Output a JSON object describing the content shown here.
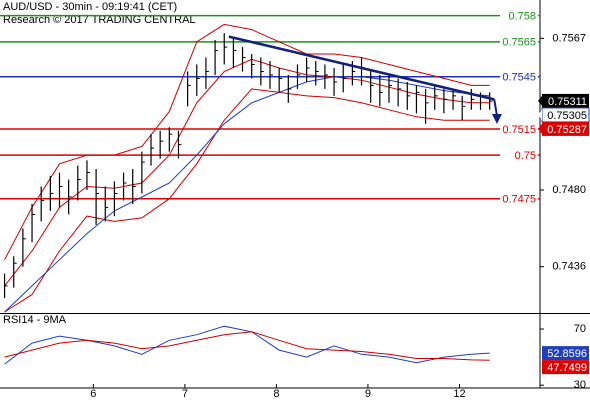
{
  "chart_data": {
    "type": "ohlc",
    "title": "AUD/USD - 30min - 09:19:41 (CET)",
    "subtitle": "Research © 2017 TRADING CENTRAL",
    "xlim": [
      -0.5,
      58.5
    ],
    "xticks": [
      {
        "value": 9.7,
        "label": "6"
      },
      {
        "value": 19.7,
        "label": "7"
      },
      {
        "value": 29.7,
        "label": "8"
      },
      {
        "value": 39.7,
        "label": "9"
      },
      {
        "value": 49.7,
        "label": "12"
      }
    ],
    "ylim": [
      0.741,
      0.7589
    ],
    "yticks": [
      0.7567,
      {
        "value": 0.748,
        "label": "0.7480"
      },
      0.7436
    ],
    "bar_color": "#000000",
    "high": [
      0.7432,
      0.7442,
      0.7458,
      0.7472,
      0.7482,
      0.7488,
      0.749,
      0.7486,
      0.7494,
      0.7497,
      0.7492,
      0.7482,
      0.7485,
      0.749,
      0.7492,
      0.7502,
      0.7512,
      0.7514,
      0.7516,
      0.7514,
      0.7548,
      0.7552,
      0.7556,
      0.7566,
      0.757,
      0.7568,
      0.7562,
      0.7558,
      0.7556,
      0.7554,
      0.755,
      0.7546,
      0.7552,
      0.7556,
      0.7554,
      0.7552,
      0.755,
      0.7552,
      0.7554,
      0.7556,
      0.7548,
      0.7546,
      0.7546,
      0.7544,
      0.7542,
      0.754,
      0.7538,
      0.754,
      0.7538,
      0.7538,
      0.7534,
      0.7538,
      0.7536,
      0.7536
    ],
    "low": [
      0.7418,
      0.7424,
      0.7436,
      0.745,
      0.7462,
      0.7468,
      0.747,
      0.7466,
      0.7474,
      0.748,
      0.746,
      0.7462,
      0.7465,
      0.7474,
      0.7472,
      0.7478,
      0.7494,
      0.7498,
      0.7502,
      0.7498,
      0.7528,
      0.7534,
      0.7538,
      0.7546,
      0.7552,
      0.755,
      0.7548,
      0.7544,
      0.754,
      0.7538,
      0.7536,
      0.753,
      0.7538,
      0.7542,
      0.754,
      0.7538,
      0.7534,
      0.7536,
      0.754,
      0.754,
      0.753,
      0.7528,
      0.753,
      0.7528,
      0.7526,
      0.7524,
      0.7518,
      0.7526,
      0.7524,
      0.7526,
      0.752,
      0.7526,
      0.7526,
      0.7526
    ],
    "close": [
      0.7425,
      0.7438,
      0.7452,
      0.7466,
      0.7474,
      0.7478,
      0.7482,
      0.7476,
      0.7486,
      0.749,
      0.7478,
      0.747,
      0.7478,
      0.7484,
      0.7482,
      0.7496,
      0.7504,
      0.7508,
      0.7512,
      0.7506,
      0.754,
      0.7544,
      0.7548,
      0.756,
      0.7562,
      0.756,
      0.7556,
      0.7552,
      0.7548,
      0.7546,
      0.7544,
      0.7538,
      0.7546,
      0.755,
      0.7548,
      0.7546,
      0.7542,
      0.7544,
      0.7548,
      0.755,
      0.754,
      0.7536,
      0.754,
      0.7538,
      0.7534,
      0.7536,
      0.753,
      0.7534,
      0.7532,
      0.7534,
      0.7528,
      0.7532,
      0.7534,
      0.7531
    ],
    "indicators": [
      {
        "color": "#cc0000",
        "x": [
          0,
          3,
          6,
          9,
          12,
          15,
          18,
          21,
          24,
          27,
          30,
          33,
          36,
          39,
          42,
          45,
          48,
          51,
          53
        ],
        "values": [
          0.744,
          0.747,
          0.7495,
          0.75,
          0.75,
          0.7505,
          0.7525,
          0.7565,
          0.7575,
          0.7572,
          0.7565,
          0.7558,
          0.7558,
          0.7556,
          0.7552,
          0.7548,
          0.7544,
          0.754,
          0.754
        ]
      },
      {
        "color": "#cc0000",
        "x": [
          0,
          3,
          6,
          9,
          12,
          15,
          18,
          21,
          24,
          27,
          30,
          33,
          36,
          39,
          42,
          45,
          48,
          51,
          53
        ],
        "values": [
          0.741,
          0.742,
          0.7445,
          0.7465,
          0.7462,
          0.7464,
          0.7475,
          0.7495,
          0.752,
          0.7538,
          0.7536,
          0.7534,
          0.7533,
          0.753,
          0.7526,
          0.7522,
          0.752,
          0.752,
          0.752
        ]
      },
      {
        "color": "#cc0000",
        "x": [
          0,
          3,
          6,
          9,
          12,
          15,
          18,
          21,
          24,
          27,
          30,
          33,
          36,
          39,
          42,
          45,
          48,
          51,
          53
        ],
        "values": [
          0.7425,
          0.7445,
          0.747,
          0.7482,
          0.7481,
          0.7484,
          0.75,
          0.753,
          0.7548,
          0.7555,
          0.755,
          0.7546,
          0.7545,
          0.7543,
          0.7539,
          0.7535,
          0.7532,
          0.753,
          0.753
        ]
      },
      {
        "color": "#1f3fbf",
        "x": [
          0,
          3,
          6,
          9,
          12,
          15,
          18,
          21,
          24,
          27,
          30,
          33,
          36,
          39,
          42,
          45,
          48,
          51,
          53
        ],
        "values": [
          0.741,
          0.7425,
          0.744,
          0.7455,
          0.7468,
          0.7476,
          0.7484,
          0.75,
          0.7518,
          0.753,
          0.7536,
          0.7542,
          0.7545,
          0.7545,
          0.7543,
          0.754,
          0.7537,
          0.7535,
          0.7534
        ]
      }
    ],
    "levels": [
      {
        "value": 0.758,
        "color": "#1f8f1f"
      },
      {
        "value": 0.7565,
        "color": "#1f8f1f"
      },
      {
        "value": 0.7545,
        "color": "#1f2fbf"
      },
      {
        "value": 0.7515,
        "color": "#dd0000"
      },
      {
        "value": 0.75,
        "color": "#dd0000"
      },
      {
        "value": 0.7475,
        "color": "#dd0000"
      }
    ],
    "trendline": {
      "color": "#14207a",
      "x": [
        24.5,
        53.5
      ],
      "y": [
        0.7568,
        0.7532
      ]
    },
    "arrow": {
      "color": "#14207a",
      "x": [
        53.5,
        53.8
      ],
      "y": [
        0.7532,
        0.7519
      ]
    },
    "price_tags": [
      {
        "value": 0.75311,
        "color": "#000000",
        "text_color": "#ffffff"
      },
      {
        "value": 0.75305,
        "color": "#ffffff",
        "text_color": "#000000"
      },
      {
        "value": 0.75287,
        "color": "#dd0000",
        "text_color": "#ffffff"
      }
    ],
    "rsi": {
      "title": "RSI14 - 9MA",
      "ylim": [
        28,
        80
      ],
      "yticks": [
        70,
        30
      ],
      "x": [
        0,
        3,
        6,
        9,
        12,
        15,
        18,
        21,
        24,
        27,
        30,
        33,
        36,
        39,
        42,
        45,
        48,
        51,
        53
      ],
      "series": [
        {
          "color": "#1f3fbf",
          "values": [
            45,
            60,
            65,
            62,
            58,
            52,
            62,
            66,
            72,
            68,
            55,
            50,
            58,
            52,
            50,
            46,
            50,
            52,
            52.8596
          ],
          "value_label_color": "#1f3fbf"
        },
        {
          "color": "#cc0000",
          "values": [
            50,
            55,
            60,
            62,
            60,
            56,
            58,
            62,
            66,
            68,
            62,
            56,
            55,
            54,
            52,
            49,
            49,
            48,
            47.7499
          ],
          "value_label_color": "#dd0000"
        }
      ]
    }
  }
}
